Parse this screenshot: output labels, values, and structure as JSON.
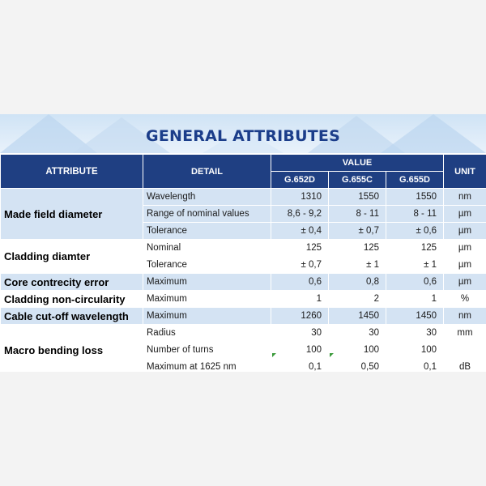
{
  "title": "GENERAL ATTRIBUTES",
  "header": {
    "attribute": "ATTRIBUTE",
    "detail": "DETAIL",
    "value": "VALUE",
    "unit": "UNIT",
    "cols": [
      "G.652D",
      "G.655C",
      "G.655D"
    ]
  },
  "groups": [
    {
      "attribute": "Made field diameter",
      "rows": [
        {
          "detail": "Wavelength",
          "v1": "1310",
          "v2": "1550",
          "v3": "1550",
          "unit": "nm"
        },
        {
          "detail": "Range of nominal values",
          "v1": "8,6 - 9,2",
          "v2": "8 - 11",
          "v3": "8 - 11",
          "unit": "µm"
        },
        {
          "detail": "Tolerance",
          "v1": "± 0,4",
          "v2": "± 0,7",
          "v3": "± 0,6",
          "unit": "µm"
        }
      ]
    },
    {
      "attribute": "Cladding diamter",
      "rows": [
        {
          "detail": "Nominal",
          "v1": "125",
          "v2": "125",
          "v3": "125",
          "unit": "µm"
        },
        {
          "detail": "Tolerance",
          "v1": "± 0,7",
          "v2": "± 1",
          "v3": "± 1",
          "unit": "µm"
        }
      ]
    },
    {
      "attribute": "Core contrecity error",
      "rows": [
        {
          "detail": "Maximum",
          "v1": "0,6",
          "v2": "0,8",
          "v3": "0,6",
          "unit": "µm"
        }
      ]
    },
    {
      "attribute": "Cladding non-circularity",
      "rows": [
        {
          "detail": "Maximum",
          "v1": "1",
          "v2": "2",
          "v3": "1",
          "unit": "%"
        }
      ]
    },
    {
      "attribute": "Cable cut-off wavelength",
      "rows": [
        {
          "detail": "Maximum",
          "v1": "1260",
          "v2": "1450",
          "v3": "1450",
          "unit": "nm"
        }
      ]
    },
    {
      "attribute": "Macro bending loss",
      "rows": [
        {
          "detail": "Radius",
          "v1": "30",
          "v2": "30",
          "v3": "30",
          "unit": "mm"
        },
        {
          "detail": "Number of turns",
          "v1": "100",
          "v2": "100",
          "v3": "100",
          "unit": ""
        },
        {
          "detail": "Maximum at 1625 nm",
          "v1": "0,1",
          "v2": "0,50",
          "v3": "0,1",
          "unit": "dB"
        }
      ]
    }
  ],
  "colors": {
    "header_bg": "#1f3f82",
    "title": "#1b3d8a",
    "shaded_row": "#d4e3f3"
  }
}
